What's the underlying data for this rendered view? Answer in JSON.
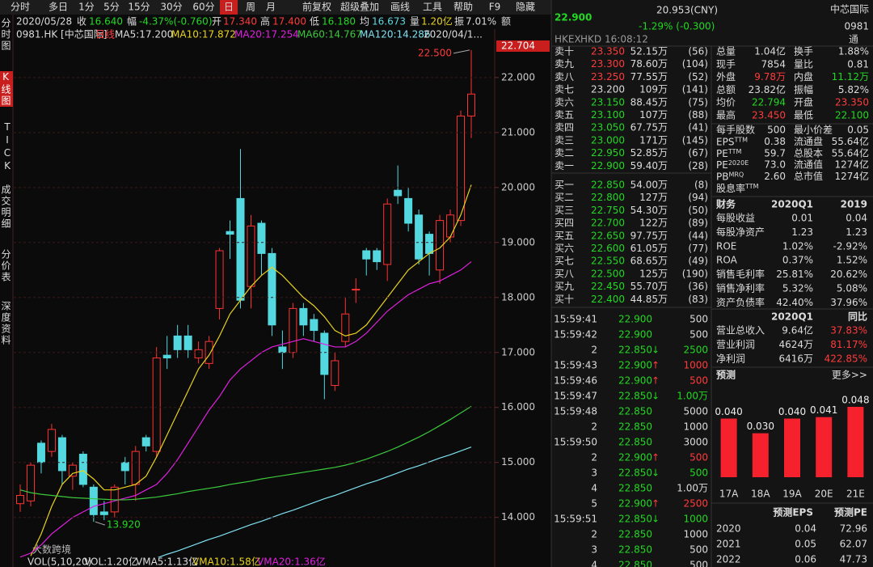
{
  "toolbar": [
    "分时",
    "多日",
    "1分",
    "5分",
    "15分",
    "30分",
    "60分",
    "日",
    "周",
    "月",
    "前复权",
    "超级叠加",
    "画线",
    "工具",
    "帮助",
    "F9",
    "隐藏"
  ],
  "side_tabs": [
    "分时图",
    "K线图",
    "TICK",
    "成交明细",
    "分价表",
    "深度资料"
  ],
  "info_bar": [
    "2020/05/28",
    "收",
    "16.640",
    "幅",
    "-4.37%(-0.760)",
    "开",
    "17.340",
    "高",
    "17.400",
    "低",
    "16.180",
    "均",
    "16.673",
    "量",
    "1.20亿",
    "振",
    "7.01%",
    "额"
  ],
  "ma_legend": [
    "0981.HK [中芯国际]",
    "日线",
    "MA5:17.200",
    "MA10:17.872",
    "MA20:17.254",
    "MA60:14.767",
    "MA120:14.286",
    "2020/04/1..."
  ],
  "volume_legend": [
    "VOL(5,10,20)",
    "VOL:1.20亿",
    "VMA5:1.13亿",
    "VMA10:1.58亿",
    "VMA20:1.36亿"
  ],
  "watermark": "大数跨境",
  "chart_data": [
    {
      "type": "candlestick",
      "up_color": "#ff3232",
      "down_color": "#54d8e0",
      "open": [
        14.25,
        14.3,
        15.35,
        15.2,
        15.45,
        14.75,
        15.15,
        14.55,
        14.1,
        14.1,
        15.0,
        14.6,
        15.45,
        15.2,
        16.95,
        17.3,
        17.3,
        16.9,
        16.8,
        17.8,
        19.2,
        19.8,
        18.2,
        19.35,
        18.8,
        17.1,
        17.0,
        17.8,
        17.6,
        17.35,
        16.4,
        17.2,
        18.15,
        18.85,
        18.85,
        18.6,
        19.95,
        19.8,
        19.5,
        19.15,
        18.5,
        19.1,
        19.4,
        21.3
      ],
      "high": [
        14.6,
        15.0,
        15.4,
        15.7,
        15.5,
        15.0,
        15.2,
        14.6,
        14.3,
        14.6,
        15.1,
        15.3,
        15.5,
        17.1,
        17.3,
        17.5,
        17.5,
        17.2,
        17.3,
        18.9,
        19.4,
        20.7,
        19.5,
        19.4,
        18.9,
        17.4,
        17.9,
        17.9,
        17.7,
        17.4,
        17.0,
        18.0,
        18.35,
        18.9,
        18.9,
        19.8,
        20.4,
        20.0,
        19.6,
        19.2,
        19.5,
        19.6,
        21.4,
        22.5
      ],
      "low": [
        14.1,
        14.2,
        14.8,
        15.1,
        14.6,
        14.5,
        14.55,
        13.92,
        13.95,
        14.0,
        14.6,
        14.3,
        15.2,
        15.1,
        16.7,
        16.9,
        16.9,
        16.8,
        16.7,
        17.6,
        18.7,
        17.8,
        17.8,
        18.4,
        17.3,
        16.7,
        16.9,
        17.3,
        17.2,
        16.15,
        16.3,
        17.1,
        17.9,
        18.4,
        18.5,
        18.3,
        19.7,
        19.2,
        18.6,
        18.4,
        18.25,
        19.0,
        19.3,
        20.9
      ],
      "close": [
        14.4,
        14.95,
        15.0,
        15.6,
        14.85,
        14.95,
        14.6,
        14.05,
        14.05,
        14.55,
        14.85,
        15.2,
        15.3,
        16.9,
        16.9,
        17.05,
        17.05,
        17.05,
        17.2,
        18.85,
        19.15,
        17.95,
        19.3,
        18.8,
        17.5,
        17.0,
        17.8,
        17.5,
        17.4,
        16.6,
        16.85,
        17.7,
        18.15,
        18.7,
        18.65,
        19.7,
        19.85,
        19.35,
        18.7,
        18.8,
        19.4,
        19.5,
        21.3,
        21.7
      ],
      "lines": [
        {
          "color": "#e8d21c",
          "values": [
            null,
            13.3,
            13.7,
            14.2,
            14.6,
            14.8,
            14.85,
            14.7,
            14.5,
            14.5,
            14.55,
            14.6,
            14.75,
            15.1,
            15.5,
            15.9,
            16.3,
            16.7,
            16.95,
            17.3,
            17.7,
            17.95,
            18.2,
            18.4,
            18.55,
            18.4,
            18.2,
            18.0,
            17.85,
            17.65,
            17.4,
            17.3,
            17.35,
            17.5,
            17.75,
            18.0,
            18.25,
            18.5,
            18.65,
            18.8,
            18.9,
            19.1,
            19.5,
            20.05
          ]
        },
        {
          "color": "#e020e0",
          "values": [
            13.28,
            13.35,
            13.5,
            13.7,
            13.85,
            14.0,
            14.1,
            14.2,
            14.25,
            14.3,
            14.35,
            14.4,
            14.5,
            14.6,
            14.8,
            15.05,
            15.35,
            15.65,
            15.95,
            16.2,
            16.5,
            16.7,
            16.85,
            17.0,
            17.1,
            17.15,
            17.2,
            17.25,
            17.2,
            17.15,
            17.1,
            17.1,
            17.2,
            17.35,
            17.55,
            17.75,
            17.9,
            18.05,
            18.15,
            18.25,
            18.3,
            18.4,
            18.5,
            18.65
          ]
        },
        {
          "color": "#3cc83c",
          "values": [
            14.5,
            14.45,
            14.42,
            14.4,
            14.38,
            14.36,
            14.35,
            14.34,
            14.33,
            14.32,
            14.32,
            14.33,
            14.35,
            14.37,
            14.4,
            14.43,
            14.47,
            14.5,
            14.53,
            14.56,
            14.6,
            14.63,
            14.66,
            14.7,
            14.73,
            14.76,
            14.79,
            14.82,
            14.85,
            14.88,
            14.91,
            14.95,
            15.0,
            15.06,
            15.13,
            15.2,
            15.28,
            15.37,
            15.46,
            15.56,
            15.67,
            15.78,
            15.9,
            16.02
          ]
        },
        {
          "color": "#7fe0f0",
          "values": [
            null,
            null,
            null,
            null,
            null,
            null,
            null,
            null,
            null,
            null,
            null,
            null,
            null,
            13.26,
            13.33,
            13.39,
            13.46,
            13.53,
            13.6,
            13.66,
            13.73,
            13.8,
            13.87,
            13.93,
            14.0,
            14.07,
            14.13,
            14.2,
            14.27,
            14.34,
            14.4,
            14.47,
            14.54,
            14.61,
            14.67,
            14.74,
            14.81,
            14.88,
            14.94,
            15.01,
            15.08,
            15.14,
            15.21,
            15.28
          ]
        }
      ],
      "ylim": [
        13.26,
        22.704
      ],
      "yticks": [
        {
          "value": 14,
          "label": "14.000"
        },
        {
          "value": 15,
          "label": "15.000"
        },
        {
          "value": 16,
          "label": "16.000"
        },
        {
          "value": 17,
          "label": "17.000"
        },
        {
          "value": 18,
          "label": "18.000"
        },
        {
          "value": 19,
          "label": "19.000"
        },
        {
          "value": 20,
          "label": "20.000"
        },
        {
          "value": 21,
          "label": "21.000"
        },
        {
          "value": 22,
          "label": "22.000"
        }
      ],
      "grid": true,
      "high_label": "22.500",
      "low_label": "13.920"
    },
    {
      "type": "bar",
      "color": "#f5222d",
      "categories": [
        "17A",
        "18A",
        "19A",
        "20E",
        "21E"
      ],
      "values": [
        0.04,
        0.03,
        0.04,
        0.041,
        0.048
      ],
      "value_labels": [
        "0.040",
        "0.030",
        "0.040",
        "0.041",
        "0.048"
      ]
    }
  ],
  "quote": {
    "price": "22.900",
    "cny": "20.953(CNY)",
    "change": "-1.29% (-0.300)",
    "name": "中芯国际",
    "code": "0981",
    "exchange": "HKEX",
    "currency": "HKD",
    "time": "16:08:12",
    "tag": "通"
  },
  "asks": [
    [
      "卖十",
      "23.350",
      "52.15万",
      "(56)"
    ],
    [
      "卖九",
      "23.300",
      "78.60万",
      "(104)"
    ],
    [
      "卖八",
      "23.250",
      "77.55万",
      "(52)"
    ],
    [
      "卖七",
      "23.200",
      "109万",
      "(141)"
    ],
    [
      "卖六",
      "23.150",
      "88.45万",
      "(75)"
    ],
    [
      "卖五",
      "23.100",
      "107万",
      "(88)"
    ],
    [
      "卖四",
      "23.050",
      "67.75万",
      "(41)"
    ],
    [
      "卖三",
      "23.000",
      "171万",
      "(145)"
    ],
    [
      "卖二",
      "22.950",
      "52.85万",
      "(67)"
    ],
    [
      "卖一",
      "22.900",
      "59.40万",
      "(28)"
    ]
  ],
  "bids": [
    [
      "买一",
      "22.850",
      "54.00万",
      "(8)"
    ],
    [
      "买二",
      "22.800",
      "127万",
      "(94)"
    ],
    [
      "买三",
      "22.750",
      "54.30万",
      "(50)"
    ],
    [
      "买四",
      "22.700",
      "122万",
      "(89)"
    ],
    [
      "买五",
      "22.650",
      "97.75万",
      "(44)"
    ],
    [
      "买六",
      "22.600",
      "61.05万",
      "(77)"
    ],
    [
      "买七",
      "22.550",
      "68.65万",
      "(49)"
    ],
    [
      "买八",
      "22.500",
      "125万",
      "(190)"
    ],
    [
      "买九",
      "22.450",
      "55.70万",
      "(36)"
    ],
    [
      "买十",
      "22.400",
      "44.85万",
      "(83)"
    ]
  ],
  "trades": [
    {
      "time": "15:59:41",
      "price": "22.900",
      "vol": "500"
    },
    {
      "time": "15:59:42",
      "price": "22.900",
      "vol": "500"
    },
    {
      "time": "2",
      "price": "22.850",
      "arrow": "↓",
      "vol": "2500"
    },
    {
      "time": "15:59:43",
      "price": "22.900",
      "arrow": "↑",
      "vol": "1000"
    },
    {
      "time": "15:59:46",
      "price": "22.900",
      "arrow": "↑",
      "vol": "500"
    },
    {
      "time": "15:59:47",
      "price": "22.850",
      "arrow": "↓",
      "vol": "1.00万"
    },
    {
      "time": "15:59:48",
      "price": "22.850",
      "vol": "5000"
    },
    {
      "time": "2",
      "price": "22.850",
      "vol": "1000"
    },
    {
      "time": "15:59:50",
      "price": "22.850",
      "vol": "3000"
    },
    {
      "time": "2",
      "price": "22.900",
      "arrow": "↑",
      "vol": "500"
    },
    {
      "time": "3",
      "price": "22.850",
      "arrow": "↓",
      "vol": "500"
    },
    {
      "time": "4",
      "price": "22.850",
      "vol": "1.00万"
    },
    {
      "time": "5",
      "price": "22.900",
      "arrow": "↑",
      "vol": "2500"
    },
    {
      "time": "15:59:51",
      "price": "22.850",
      "arrow": "↓",
      "vol": "1000"
    },
    {
      "time": "2",
      "price": "22.850",
      "vol": "1000"
    },
    {
      "time": "3",
      "price": "22.850",
      "vol": "500"
    },
    {
      "time": "4",
      "price": "22.850",
      "vol": "500"
    }
  ],
  "stats": [
    [
      "总量",
      "1.04亿",
      "换手",
      "1.88%"
    ],
    [
      "现手",
      "7854",
      "量比",
      "0.81"
    ],
    [
      "外盘",
      "9.78万",
      "内盘",
      "11.12万"
    ],
    [
      "总额",
      "23.82亿",
      "振幅",
      "5.82%"
    ],
    [
      "均价",
      "22.794",
      "开盘",
      "23.350"
    ],
    [
      "最高",
      "23.450",
      "最低",
      "22.100"
    ],
    [
      "每手股数",
      "500",
      "最小价差",
      "0.05"
    ],
    [
      [
        "EPS",
        "TTM"
      ],
      "0.38",
      "流通盘",
      "55.64亿"
    ],
    [
      [
        "PE",
        "TTM"
      ],
      "59.7",
      "总股本",
      "55.64亿"
    ],
    [
      [
        "PE",
        "2020E"
      ],
      "73.0",
      "流通值",
      "1274亿"
    ],
    [
      [
        "PB",
        "MRQ"
      ],
      "2.60",
      "总市值",
      "1274亿"
    ],
    [
      [
        "股息率",
        "TTM"
      ]
    ]
  ],
  "finance": {
    "header": [
      "财务",
      "2020Q1",
      "2019"
    ],
    "rows": [
      [
        "每股收益",
        "0.01",
        "0.04"
      ],
      [
        "每股净资产",
        "1.23",
        "1.23"
      ],
      [
        "ROE",
        "1.02%",
        "-2.92%"
      ],
      [
        "ROA",
        "0.37%",
        "1.52%"
      ],
      [
        "销售毛利率",
        "25.81%",
        "20.62%"
      ],
      [
        "销售净利率",
        "5.32%",
        "5.08%"
      ],
      [
        "资产负债率",
        "42.40%",
        "37.96%"
      ]
    ]
  },
  "growth": {
    "header": [
      "2020Q1",
      "同比"
    ],
    "rows": [
      [
        "营业总收入",
        "9.64亿",
        "37.83%"
      ],
      [
        "营业利润",
        "4624万",
        "81.17%"
      ],
      [
        "净利润",
        "6416万",
        "422.85%"
      ]
    ]
  },
  "forecast": {
    "title": "预测",
    "more": "更多>>",
    "header": [
      "预测EPS",
      "预测PE"
    ],
    "rows": [
      [
        "2020",
        "0.04",
        "72.96"
      ],
      [
        "2021",
        "0.05",
        "62.07"
      ],
      [
        "2022",
        "0.06",
        "47.73"
      ]
    ]
  }
}
